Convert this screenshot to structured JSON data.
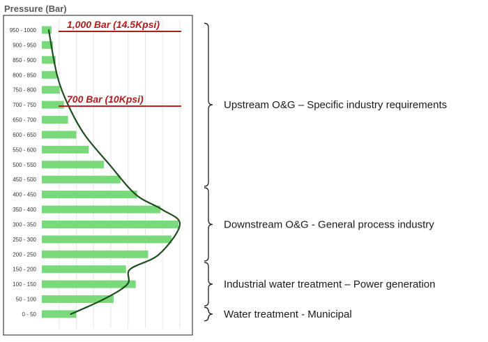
{
  "chart_data": {
    "type": "bar",
    "orientation": "horizontal",
    "ylabel": "Pressure (Bar)",
    "categories": [
      "0 - 50",
      "50 - 100",
      "100 - 150",
      "150 - 200",
      "200 - 250",
      "250 - 300",
      "300 - 350",
      "350 - 400",
      "400 - 450",
      "450 - 500",
      "500 - 550",
      "550 - 600",
      "600 - 650",
      "650 - 700",
      "700 - 750",
      "750 - 800",
      "800 - 850",
      "850 - 900",
      "900 - 950",
      "950 - 1000"
    ],
    "values": [
      25,
      52,
      68,
      61,
      77,
      94,
      99,
      86,
      69,
      57,
      45,
      34,
      25,
      19,
      16,
      13,
      11,
      10,
      8,
      7
    ],
    "xlim": [
      0,
      100
    ],
    "grid": true,
    "bar_color": "#7ad97a",
    "curve_color": "#1f4d1f",
    "curve": [
      {
        "value": 21,
        "category": "0 - 50"
      },
      {
        "value": 45,
        "category": "50 - 100"
      },
      {
        "value": 62,
        "category": "100 - 150"
      },
      {
        "value": 64,
        "category": "150 - 200"
      },
      {
        "value": 85,
        "category": "200 - 250"
      },
      {
        "value": 100,
        "category": "300 - 350"
      },
      {
        "value": 87,
        "category": "350 - 400"
      },
      {
        "value": 68,
        "category": "400 - 450"
      },
      {
        "value": 49,
        "category": "500 - 550"
      },
      {
        "value": 31,
        "category": "600 - 650"
      },
      {
        "value": 19,
        "category": "700 - 750"
      },
      {
        "value": 11,
        "category": "800 - 850"
      },
      {
        "value": 5,
        "category": "950 - 1000"
      }
    ],
    "thresholds": [
      {
        "label": "1,000 Bar (14.5Kpsi)",
        "category": "950 - 1000",
        "color": "#b01b1b"
      },
      {
        "label": "700 Bar (10Kpsi)",
        "category": "700 - 750",
        "color": "#b01b1b"
      }
    ],
    "segments": [
      {
        "label": "Upstream O&G – Specific industry requirements",
        "from": "450 - 500",
        "to": "950 - 1000"
      },
      {
        "label": "Downstream O&G - General process industry",
        "from": "200 - 250",
        "to": "400 - 450"
      },
      {
        "label": "Industrial water treatment – Power generation",
        "from": "50 - 100",
        "to": "150 - 200"
      },
      {
        "label": "Water treatment - Municipal",
        "from": "0 - 50",
        "to": "0 - 50"
      }
    ]
  }
}
